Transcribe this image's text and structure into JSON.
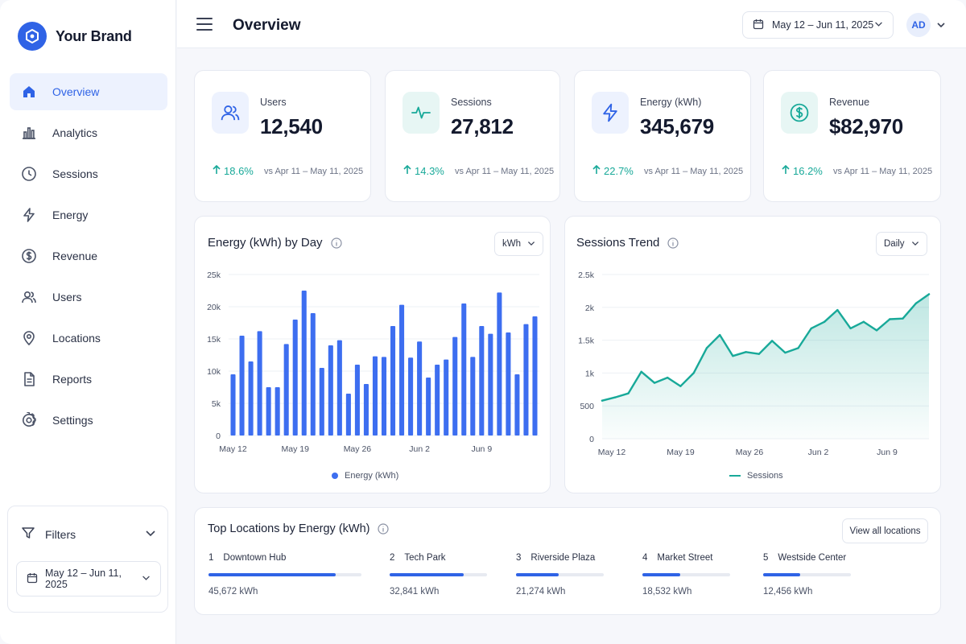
{
  "brand": {
    "name": "Your Brand"
  },
  "sidebar": {
    "items": [
      {
        "label": "Overview",
        "icon": "home-icon",
        "active": true
      },
      {
        "label": "Analytics",
        "icon": "bar-chart-icon"
      },
      {
        "label": "Sessions",
        "icon": "clock-icon"
      },
      {
        "label": "Energy",
        "icon": "bolt-icon"
      },
      {
        "label": "Revenue",
        "icon": "dollar-circle-icon"
      },
      {
        "label": "Users",
        "icon": "users-icon"
      },
      {
        "label": "Locations",
        "icon": "map-pin-icon"
      },
      {
        "label": "Reports",
        "icon": "document-icon"
      },
      {
        "label": "Settings",
        "icon": "gear-icon"
      }
    ],
    "filters": {
      "label": "Filters",
      "date_range": "May 12 – Jun 11, 2025"
    }
  },
  "header": {
    "title": "Overview",
    "date_range": "May 12 – Jun 11, 2025",
    "avatar_initials": "AD"
  },
  "kpis": [
    {
      "label": "Users",
      "value": "12,540",
      "change": "18.6%",
      "compare": "vs Apr 11 – May 11, 2025",
      "icon": "users-icon",
      "accent": "#2f63e6"
    },
    {
      "label": "Sessions",
      "value": "27,812",
      "change": "14.3%",
      "compare": "vs Apr 11 – May 11, 2025",
      "icon": "activity-icon",
      "accent": "#18a999"
    },
    {
      "label": "Energy (kWh)",
      "value": "345,679",
      "change": "22.7%",
      "compare": "vs Apr 11 – May 11, 2025",
      "icon": "bolt-icon",
      "accent": "#2f63e6"
    },
    {
      "label": "Revenue",
      "value": "$82,970",
      "change": "16.2%",
      "compare": "vs Apr 11 – May 11, 2025",
      "icon": "dollar-circle-icon",
      "accent": "#18a999"
    }
  ],
  "energy_chart": {
    "title": "Energy (kWh) by Day",
    "unit_select": "kWh",
    "legend": "Energy (kWh)"
  },
  "sessions_chart": {
    "title": "Sessions Trend",
    "period_select": "Daily",
    "legend": "Sessions"
  },
  "chart_data": [
    {
      "type": "bar",
      "title": "Energy (kWh) by Day",
      "series": [
        {
          "name": "Energy (kWh)",
          "color": "#3d6ef0",
          "values": [
            9500,
            15500,
            11500,
            16200,
            7500,
            7500,
            14200,
            18000,
            22500,
            19000,
            10500,
            14000,
            14800,
            6500,
            11000,
            8000,
            12300,
            12200,
            17000,
            20300,
            12100,
            14600,
            9000,
            11000,
            11800,
            15300,
            20500,
            12200,
            17000,
            15800,
            22200,
            16000,
            9500,
            17300,
            18500
          ]
        }
      ],
      "x_tick_labels": [
        "May 12",
        "May 19",
        "May 26",
        "Jun 2",
        "Jun 9"
      ],
      "y_tick_labels": [
        "0",
        "5k",
        "10k",
        "15k",
        "20k",
        "25k"
      ],
      "ylim": [
        0,
        25000
      ],
      "grid": true,
      "legend_position": "bottom"
    },
    {
      "type": "area",
      "title": "Sessions Trend",
      "series": [
        {
          "name": "Sessions",
          "color": "#18a999",
          "values": [
            580,
            630,
            690,
            1020,
            850,
            930,
            800,
            1000,
            1380,
            1580,
            1260,
            1320,
            1290,
            1490,
            1310,
            1380,
            1680,
            1780,
            1960,
            1680,
            1780,
            1650,
            1820,
            1830,
            2060,
            2200
          ]
        }
      ],
      "x_tick_labels": [
        "May 12",
        "May 19",
        "May 26",
        "Jun 2",
        "Jun 9"
      ],
      "y_tick_labels": [
        "0",
        "500",
        "1k",
        "1.5k",
        "2k",
        "2.5k"
      ],
      "ylim": [
        0,
        2500
      ],
      "grid": true,
      "legend_position": "bottom"
    }
  ],
  "locations": {
    "title": "Top Locations by Energy (kWh)",
    "view_all": "View all locations",
    "items": [
      {
        "rank": "1",
        "name": "Downtown Hub",
        "value": "45,672 kWh",
        "share": 0.83
      },
      {
        "rank": "2",
        "name": "Tech Park",
        "value": "32,841 kWh",
        "share": 0.76
      },
      {
        "rank": "3",
        "name": "Riverside Plaza",
        "value": "21,274 kWh",
        "share": 0.49
      },
      {
        "rank": "4",
        "name": "Market Street",
        "value": "18,532 kWh",
        "share": 0.43
      },
      {
        "rank": "5",
        "name": "Westside Center",
        "value": "12,456 kWh",
        "share": 0.42
      }
    ]
  }
}
